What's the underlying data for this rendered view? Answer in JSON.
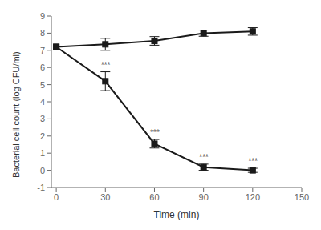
{
  "chart_data": {
    "type": "line",
    "x_label": "Time (min)",
    "y_label": "Bacterial cell count (log CFU/ml)",
    "x": [
      0,
      30,
      60,
      90,
      120
    ],
    "series": [
      {
        "color": "#1a1a1a",
        "marker": "square",
        "line_style": "solid",
        "values": [
          7.2,
          7.35,
          7.55,
          8.0,
          8.1
        ],
        "errors": [
          0.0,
          0.35,
          0.25,
          0.18,
          0.22
        ]
      },
      {
        "color": "#1a1a1a",
        "marker": "square",
        "line_style": "solid",
        "values": [
          7.2,
          5.2,
          1.55,
          0.18,
          0.0
        ],
        "errors": [
          0.0,
          0.55,
          0.25,
          0.18,
          0.12
        ]
      }
    ],
    "annotations": [
      {
        "text": "***",
        "x": 30,
        "y": 5.93
      },
      {
        "text": "***",
        "x": 60,
        "y": 1.98
      },
      {
        "text": "***",
        "x": 90,
        "y": 0.54
      },
      {
        "text": "***",
        "x": 120,
        "y": 0.3
      }
    ],
    "xlim": [
      -3,
      150
    ],
    "xticks": [
      0,
      30,
      60,
      90,
      120,
      150
    ],
    "ylim": [
      -1,
      9
    ],
    "yticks": [
      -1,
      0,
      1,
      2,
      3,
      4,
      5,
      6,
      7,
      8,
      9
    ]
  }
}
